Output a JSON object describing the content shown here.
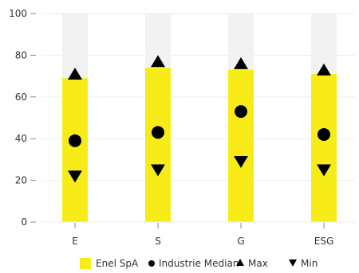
{
  "chart_data": {
    "type": "bar",
    "categories": [
      "E",
      "S",
      "G",
      "ESG"
    ],
    "ylim": [
      0,
      100
    ],
    "yticks": [
      0,
      20,
      40,
      60,
      80,
      100
    ],
    "grid": true,
    "legend_position": "bottom",
    "colors": {
      "bar": "#f8ec18",
      "background_bar": "#f2f2f2",
      "marker": "#000000",
      "grid": "#eeeeee",
      "axis": "#888888",
      "text": "#333333"
    },
    "series": [
      {
        "name": "Enel SpA",
        "kind": "bar",
        "values": [
          69,
          74,
          73,
          71
        ]
      },
      {
        "name": "Industrie Median",
        "kind": "circle",
        "values": [
          39,
          43,
          53,
          42
        ]
      },
      {
        "name": "Max",
        "kind": "triangle-up",
        "values": [
          71,
          77,
          76,
          73
        ]
      },
      {
        "name": "Min",
        "kind": "triangle-down",
        "values": [
          22,
          25,
          29,
          25
        ]
      }
    ]
  }
}
